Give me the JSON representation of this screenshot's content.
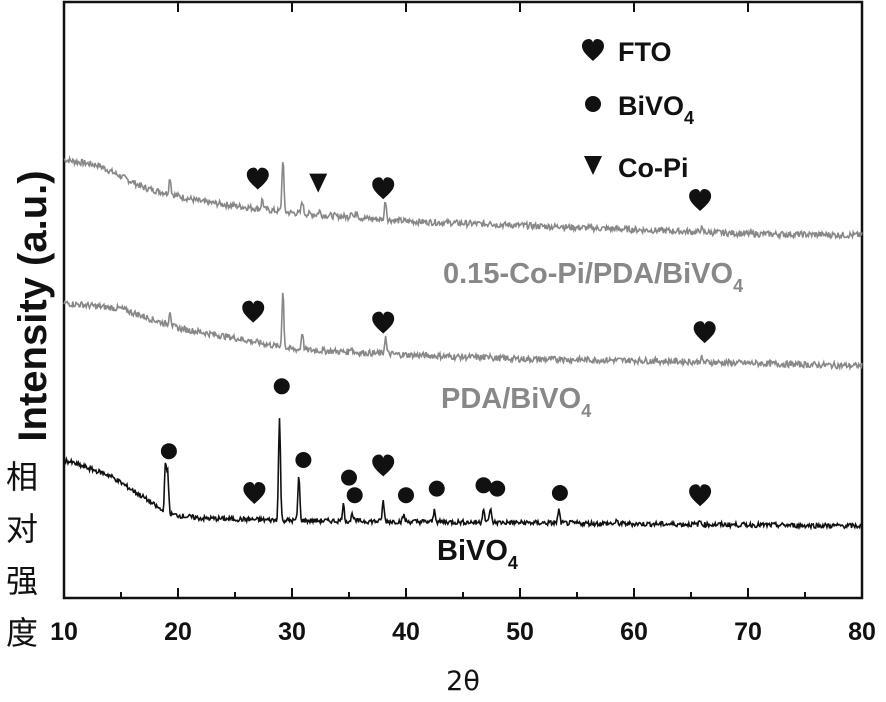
{
  "chart_data": {
    "type": "line",
    "title": "",
    "xlabel": "2θ",
    "ylabel": "Intensity (a.u.)",
    "ylabel_cn": "相对强度",
    "xlim": [
      10,
      80
    ],
    "xticks": [
      "10",
      "20",
      "30",
      "40",
      "50",
      "60",
      "70",
      "80"
    ],
    "grid": false,
    "legend": {
      "placement": "top-right",
      "entries": [
        {
          "marker": "heart",
          "label": "FTO",
          "sub": ""
        },
        {
          "marker": "circle",
          "label": "BiVO",
          "sub": "4"
        },
        {
          "marker": "triangle-down",
          "label": "Co-Pi",
          "sub": ""
        }
      ]
    },
    "series": [
      {
        "name_main": "0.15-Co-Pi/PDA/BiVO",
        "name_sub": "4",
        "color": "#888888",
        "baseline": [
          [
            10,
            0.56
          ],
          [
            13,
            0.52
          ],
          [
            17,
            0.36
          ],
          [
            22,
            0.26
          ],
          [
            30,
            0.18
          ],
          [
            40,
            0.12
          ],
          [
            50,
            0.09
          ],
          [
            60,
            0.06
          ],
          [
            70,
            0.03
          ],
          [
            80,
            0.02
          ]
        ],
        "peaks": [
          [
            19.3,
            0.12
          ],
          [
            27.4,
            0.07
          ],
          [
            29.2,
            0.38
          ],
          [
            30.9,
            0.09
          ],
          [
            32.4,
            0.03
          ],
          [
            35.2,
            0.05
          ],
          [
            35.7,
            0.05
          ],
          [
            38.2,
            0.14
          ],
          [
            47.4,
            0.03
          ],
          [
            53.6,
            0.02
          ],
          [
            65.9,
            0.03
          ]
        ],
        "markers": [
          {
            "type": "heart",
            "x": 27.0
          },
          {
            "type": "triangle-down",
            "x": 32.3
          },
          {
            "type": "heart",
            "x": 38.0
          },
          {
            "type": "heart",
            "x": 65.8
          }
        ]
      },
      {
        "name_main": "PDA/BiVO",
        "name_sub": "4",
        "color": "#888888",
        "baseline": [
          [
            10,
            0.45
          ],
          [
            15,
            0.41
          ],
          [
            20,
            0.27
          ],
          [
            25,
            0.2
          ],
          [
            30,
            0.12
          ],
          [
            40,
            0.08
          ],
          [
            50,
            0.05
          ],
          [
            60,
            0.04
          ],
          [
            70,
            0.02
          ],
          [
            80,
            0.0
          ]
        ],
        "peaks": [
          [
            19.3,
            0.11
          ],
          [
            29.2,
            0.4
          ],
          [
            30.9,
            0.13
          ],
          [
            35.2,
            0.04
          ],
          [
            38.2,
            0.12
          ],
          [
            47.4,
            0.03
          ],
          [
            53.6,
            0.02
          ],
          [
            65.9,
            0.03
          ]
        ],
        "markers": [
          {
            "type": "heart",
            "x": 26.6
          },
          {
            "type": "heart",
            "x": 38.0
          },
          {
            "type": "heart",
            "x": 66.2
          }
        ]
      },
      {
        "name_main": "BiVO",
        "name_sub": "4",
        "color": "#111111",
        "baseline": [
          [
            10,
            0.6
          ],
          [
            14,
            0.46
          ],
          [
            17,
            0.26
          ],
          [
            19,
            0.11
          ],
          [
            22,
            0.07
          ],
          [
            30,
            0.05
          ],
          [
            40,
            0.04
          ],
          [
            50,
            0.03
          ],
          [
            60,
            0.02
          ],
          [
            70,
            0.01
          ],
          [
            80,
            0.0
          ]
        ],
        "peaks": [
          [
            18.9,
            0.42
          ],
          [
            19.1,
            0.38
          ],
          [
            28.9,
            0.92
          ],
          [
            30.6,
            0.4
          ],
          [
            34.5,
            0.15
          ],
          [
            35.3,
            0.07
          ],
          [
            38.0,
            0.18
          ],
          [
            39.8,
            0.06
          ],
          [
            42.5,
            0.11
          ],
          [
            46.8,
            0.14
          ],
          [
            47.4,
            0.13
          ],
          [
            53.4,
            0.12
          ],
          [
            58.5,
            0.02
          ],
          [
            65.8,
            0.03
          ]
        ],
        "markers": [
          {
            "type": "circle",
            "x": 19.2,
            "y": 0.68
          },
          {
            "type": "circle",
            "x": 29.1,
            "y": 1.27
          },
          {
            "type": "circle",
            "x": 31.0,
            "y": 0.6
          },
          {
            "type": "circle",
            "x": 35.0,
            "y": 0.44
          },
          {
            "type": "circle",
            "x": 35.5,
            "y": 0.28
          },
          {
            "type": "heart",
            "x": 26.7,
            "y": 0.3
          },
          {
            "type": "heart",
            "x": 38.0,
            "y": 0.55
          },
          {
            "type": "circle",
            "x": 40.0,
            "y": 0.28
          },
          {
            "type": "circle",
            "x": 42.7,
            "y": 0.34
          },
          {
            "type": "circle",
            "x": 46.8,
            "y": 0.37
          },
          {
            "type": "circle",
            "x": 48.0,
            "y": 0.34
          },
          {
            "type": "circle",
            "x": 53.5,
            "y": 0.3
          },
          {
            "type": "heart",
            "x": 65.8,
            "y": 0.28
          }
        ]
      }
    ]
  }
}
